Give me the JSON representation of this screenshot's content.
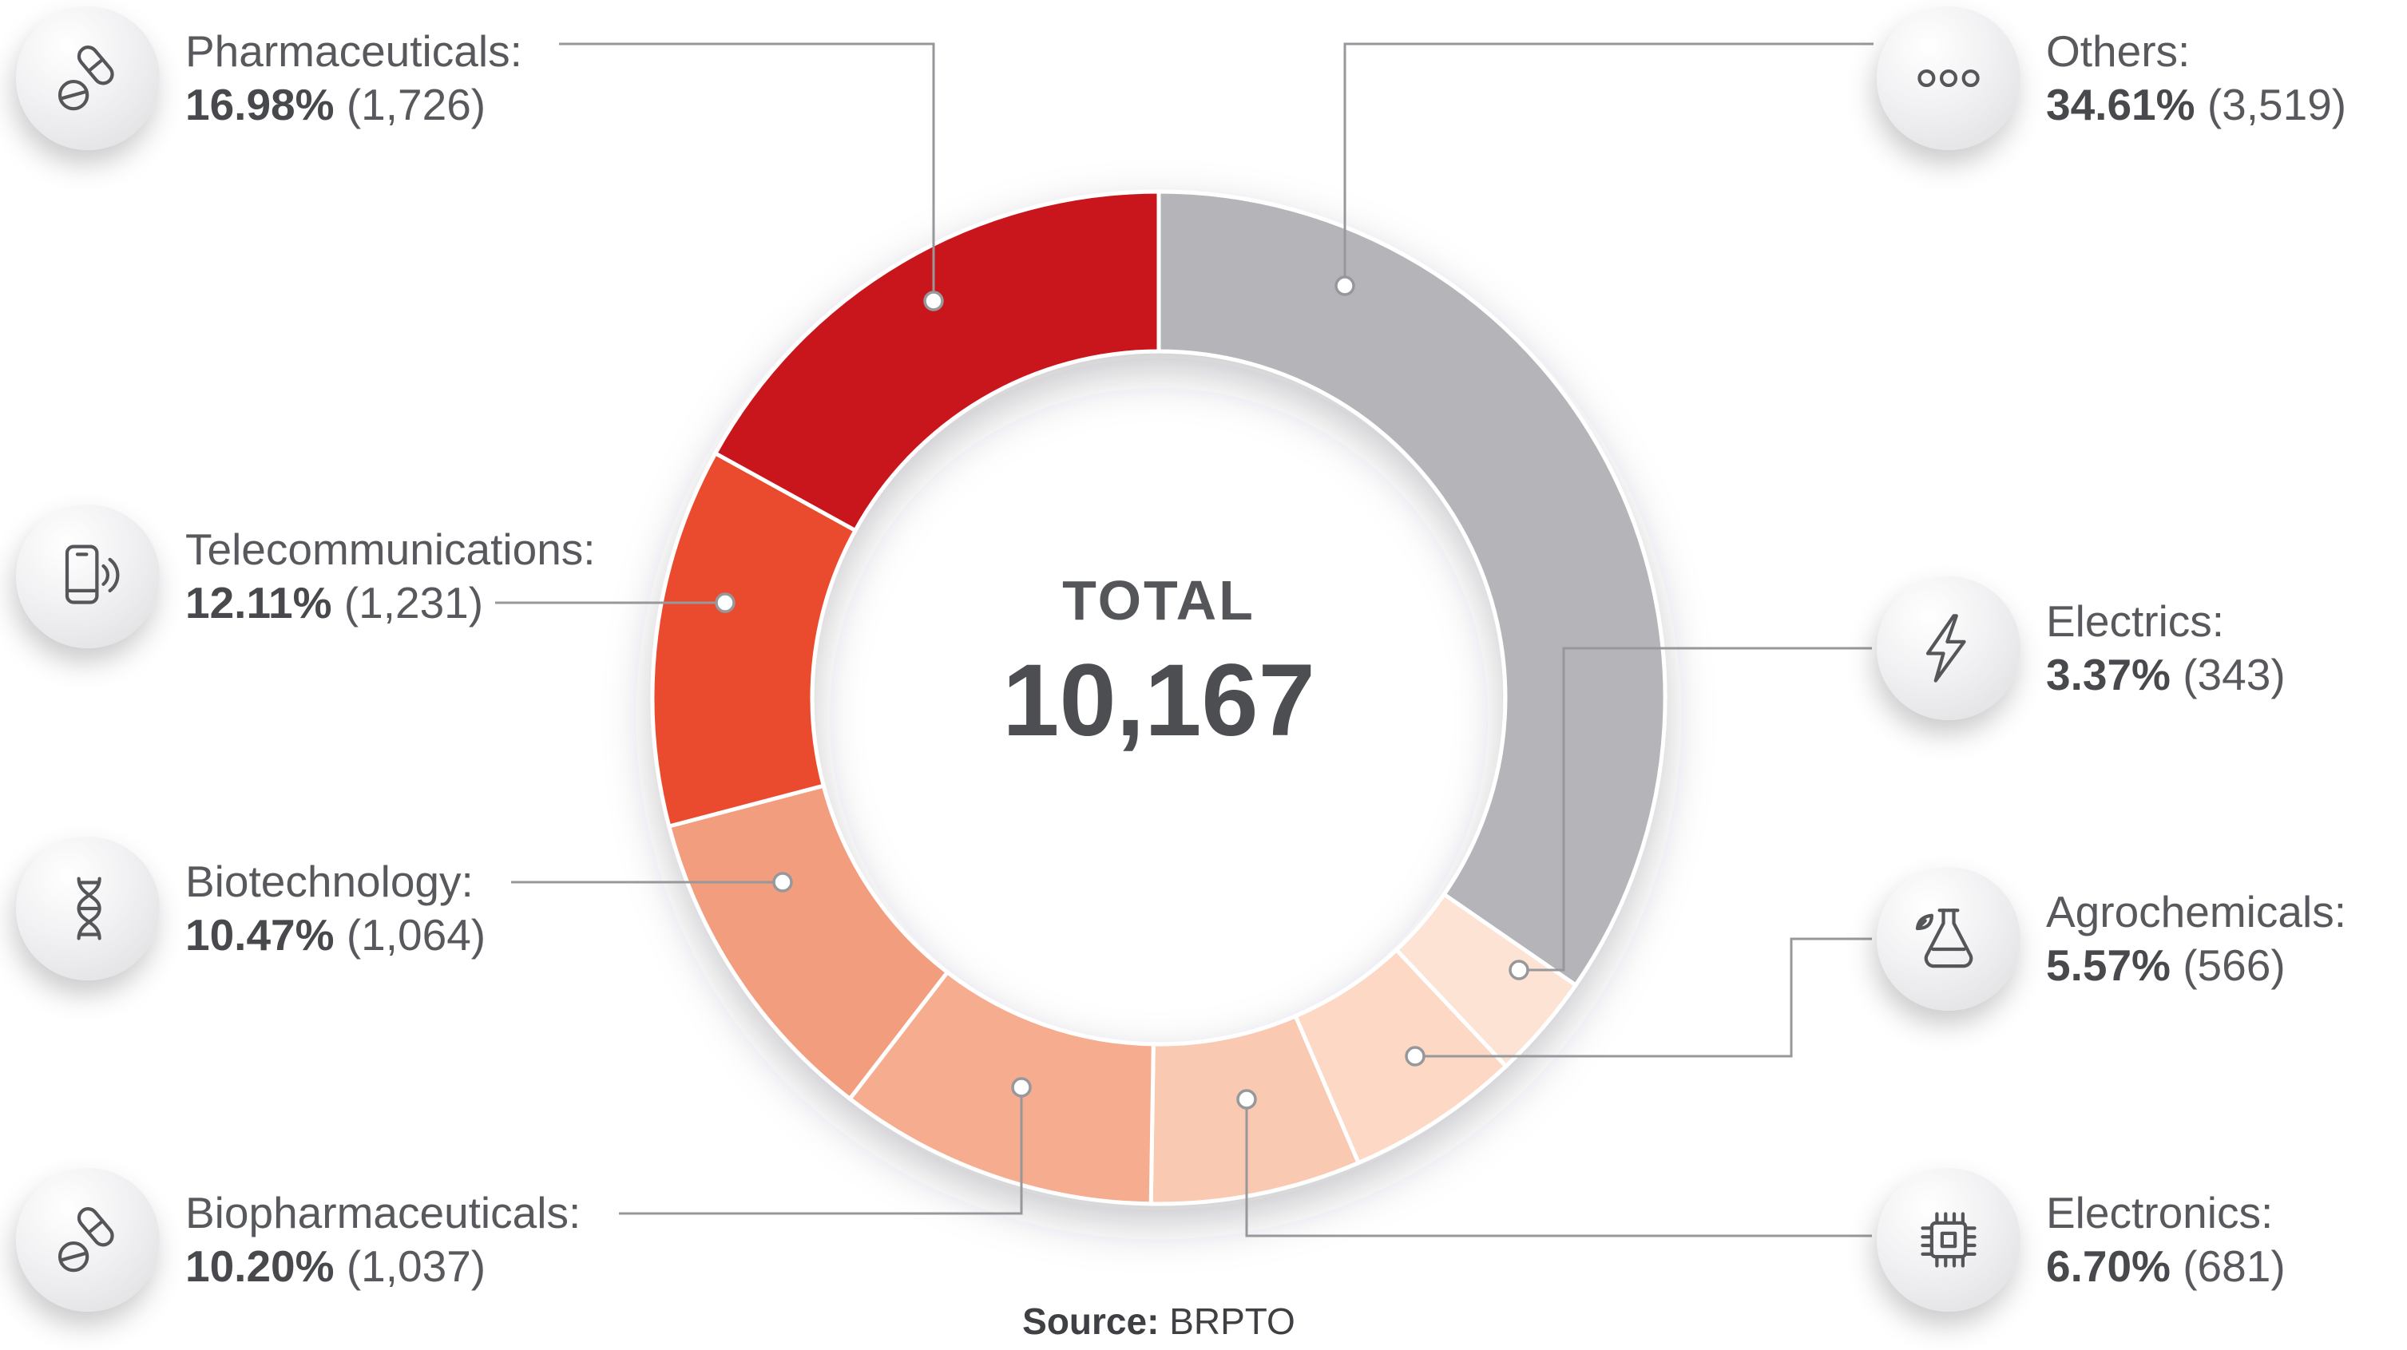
{
  "chart_data": {
    "type": "pie",
    "variant": "donut",
    "direction": "clockwise",
    "start_angle_deg": 0,
    "center_label": "TOTAL",
    "center_value": "10,167",
    "total": 10167,
    "source_label": "Source:",
    "source_value": "BRPTO",
    "legend_position": "left-and-right-callouts",
    "series": [
      {
        "name": "Others",
        "label": "Others:",
        "pct": 34.61,
        "pct_label": "34.61%",
        "count": 3519,
        "count_label": "(3,519)",
        "color": "#b5b4b8",
        "icon": "three-dots-icon"
      },
      {
        "name": "Electrics",
        "label": "Electrics:",
        "pct": 3.37,
        "pct_label": "3.37%",
        "count": 343,
        "count_label": "(343)",
        "color": "#fde3d4",
        "icon": "lightning-icon"
      },
      {
        "name": "Agrochemicals",
        "label": "Agrochemicals:",
        "pct": 5.57,
        "pct_label": "5.57%",
        "count": 566,
        "count_label": "(566)",
        "color": "#fcd8c5",
        "icon": "flask-leaf-icon"
      },
      {
        "name": "Electronics",
        "label": "Electronics:",
        "pct": 6.7,
        "pct_label": "6.70%",
        "count": 681,
        "count_label": "(681)",
        "color": "#fac9b1",
        "icon": "chip-icon"
      },
      {
        "name": "Biopharmaceuticals",
        "label": "Biopharmaceuticals:",
        "pct": 10.2,
        "pct_label": "10.20%",
        "count": 1037,
        "count_label": "(1,037)",
        "color": "#f6ad8f",
        "icon": "pills-icon"
      },
      {
        "name": "Biotechnology",
        "label": "Biotechnology:",
        "pct": 10.47,
        "pct_label": "10.47%",
        "count": 1064,
        "count_label": "(1,064)",
        "color": "#f29d7e",
        "icon": "dna-icon"
      },
      {
        "name": "Telecommunications",
        "label": "Telecommunications:",
        "pct": 12.11,
        "pct_label": "12.11%",
        "count": 1231,
        "count_label": "(1,231)",
        "color": "#ea4b2e",
        "icon": "smartphone-signal-icon"
      },
      {
        "name": "Pharmaceuticals",
        "label": "Pharmaceuticals:",
        "pct": 16.98,
        "pct_label": "16.98%",
        "count": 1726,
        "count_label": "(1,726)",
        "color": "#c9171e",
        "icon": "capsule-pill-icon"
      }
    ]
  }
}
